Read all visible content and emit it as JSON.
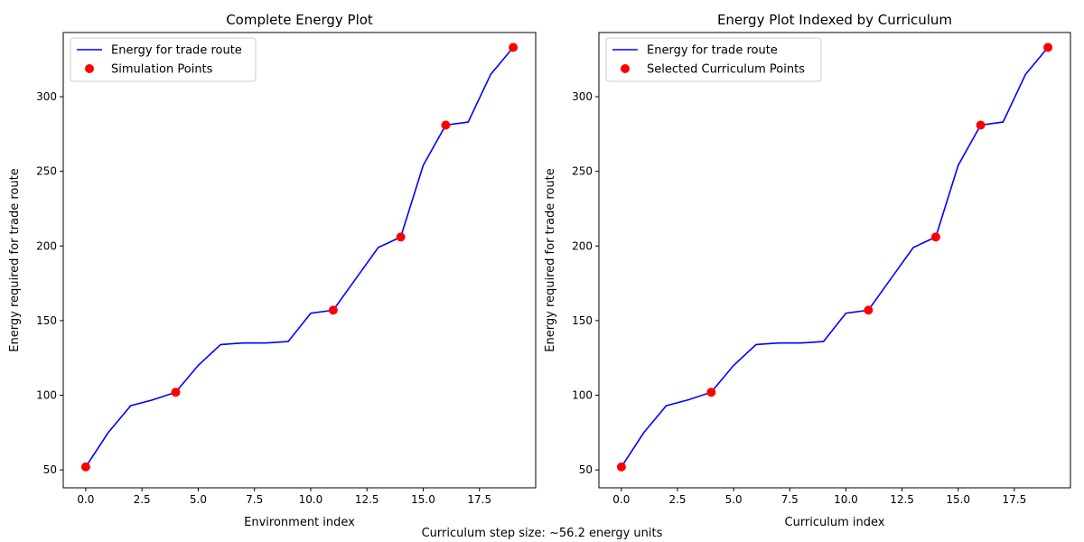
{
  "footnote": "Curriculum step size: ~56.2 energy units",
  "footnote_color": "#0000ff",
  "line_color": "#0000ff",
  "marker_color": "#ff0000",
  "chart_data": [
    {
      "type": "line",
      "title": "Complete Energy Plot",
      "xlabel": "Environment index",
      "ylabel": "Energy required for trade route",
      "xlim": [
        -1,
        20
      ],
      "ylim": [
        38,
        343
      ],
      "xticks": [
        0,
        2.5,
        5,
        7.5,
        10,
        12.5,
        15,
        17.5
      ],
      "xtick_labels": [
        "0.0",
        "2.5",
        "5.0",
        "7.5",
        "10.0",
        "12.5",
        "15.0",
        "17.5"
      ],
      "yticks": [
        50,
        100,
        150,
        200,
        250,
        300
      ],
      "ytick_labels": [
        "50",
        "100",
        "150",
        "200",
        "250",
        "300"
      ],
      "grid": false,
      "legend": "top-left",
      "series": [
        {
          "name": "Energy for trade route",
          "kind": "line",
          "x": [
            0,
            1,
            2,
            3,
            4,
            5,
            6,
            7,
            8,
            9,
            10,
            11,
            12,
            13,
            14,
            15,
            16,
            17,
            18,
            19
          ],
          "y": [
            52,
            75,
            93,
            97,
            102,
            120,
            134,
            135,
            135,
            136,
            155,
            157,
            178,
            199,
            206,
            254,
            281,
            283,
            315,
            333
          ]
        },
        {
          "name": "Simulation Points",
          "kind": "scatter",
          "x": [
            0,
            4,
            11,
            14,
            16,
            19
          ],
          "y": [
            52,
            102,
            157,
            206,
            281,
            333
          ]
        }
      ]
    },
    {
      "type": "line",
      "title": "Energy Plot Indexed by Curriculum",
      "xlabel": "Curriculum index",
      "ylabel": "Energy required for trade route",
      "xlim": [
        -1,
        20
      ],
      "ylim": [
        38,
        343
      ],
      "xticks": [
        0,
        2.5,
        5,
        7.5,
        10,
        12.5,
        15,
        17.5
      ],
      "xtick_labels": [
        "0.0",
        "2.5",
        "5.0",
        "7.5",
        "10.0",
        "12.5",
        "15.0",
        "17.5"
      ],
      "yticks": [
        50,
        100,
        150,
        200,
        250,
        300
      ],
      "ytick_labels": [
        "50",
        "100",
        "150",
        "200",
        "250",
        "300"
      ],
      "grid": false,
      "legend": "top-left",
      "series": [
        {
          "name": "Energy for trade route",
          "kind": "line",
          "x": [
            0,
            1,
            2,
            3,
            4,
            5,
            6,
            7,
            8,
            9,
            10,
            11,
            12,
            13,
            14,
            15,
            16,
            17,
            18,
            19
          ],
          "y": [
            52,
            75,
            93,
            97,
            102,
            120,
            134,
            135,
            135,
            136,
            155,
            157,
            178,
            199,
            206,
            254,
            281,
            283,
            315,
            333
          ]
        },
        {
          "name": "Selected Curriculum Points",
          "kind": "scatter",
          "x": [
            0,
            4,
            11,
            14,
            16,
            19
          ],
          "y": [
            52,
            102,
            157,
            206,
            281,
            333
          ]
        }
      ]
    }
  ]
}
